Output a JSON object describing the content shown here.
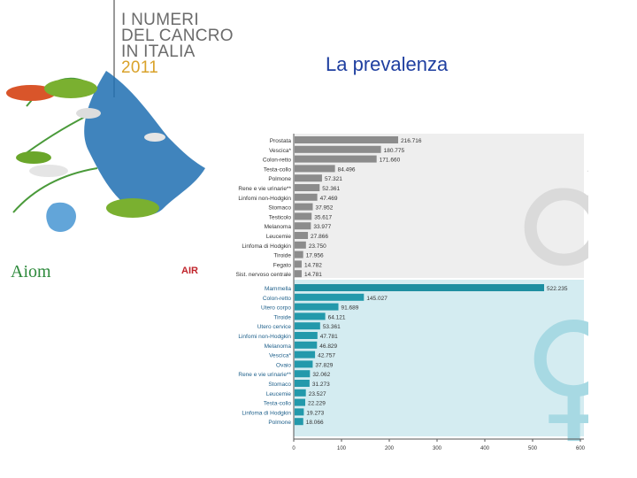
{
  "header": {
    "brand_line1": "I NUMERI",
    "brand_line2": "DEL CANCRO",
    "brand_line3": "IN ITALIA",
    "brand_year": "2011",
    "slide_title": "La prevalenza"
  },
  "logos": {
    "aiom": "Aiom",
    "airtum": "AIR"
  },
  "colors": {
    "male_bar": "#8c8c8c",
    "female_bar": "#2399ab",
    "female_highlight": "#1e8fa1",
    "male_bg": "#eeeeee",
    "female_bg": "#d4ecf1",
    "male_symbol": "#dadada",
    "female_symbol": "#a7d9e3",
    "title": "#1f3fa0"
  },
  "chart_data": [
    {
      "type": "bar",
      "orientation": "horizontal",
      "panel": "male",
      "symbol": "♂",
      "categories": [
        "Prostata",
        "Vescica*",
        "Colon-retto",
        "Testa-collo",
        "Polmone",
        "Rene e vie urinarie**",
        "Linfomi non-Hodgkin",
        "Stomaco",
        "Testicolo",
        "Melanoma",
        "Leucemie",
        "Linfoma di Hodgkin",
        "Tiroide",
        "Fegato",
        "Sist. nervoso centrale"
      ],
      "values": [
        216716,
        180775,
        171660,
        84496,
        57321,
        52361,
        47469,
        37952,
        35617,
        33977,
        27866,
        23750,
        17956,
        14782,
        14781
      ],
      "labels": [
        "216.716",
        "180.775",
        "171.660",
        "84.496",
        "57.321",
        "52.361",
        "47.469",
        "37.952",
        "35.617",
        "33.977",
        "27.866",
        "23.750",
        "17.956",
        "14.782",
        "14.781"
      ]
    },
    {
      "type": "bar",
      "orientation": "horizontal",
      "panel": "female",
      "symbol": "♀",
      "categories": [
        "Mammella",
        "Colon-retto",
        "Utero corpo",
        "Tiroide",
        "Utero cervice",
        "Linfomi non-Hodgkin",
        "Melanoma",
        "Vescica*",
        "Ovaio",
        "Rene e vie urinarie**",
        "Stomaco",
        "Leucemie",
        "Testa-collo",
        "Linfoma di Hodgkin",
        "Polmone"
      ],
      "values": [
        522235,
        145027,
        91689,
        64121,
        53361,
        47781,
        46829,
        42757,
        37829,
        32062,
        31273,
        23527,
        22229,
        19273,
        18066
      ],
      "labels": [
        "522.235",
        "145.027",
        "91.689",
        "64.121",
        "53.361",
        "47.781",
        "46.829",
        "42.757",
        "37.829",
        "32.062",
        "31.273",
        "23.527",
        "22.229",
        "19.273",
        "18.066"
      ]
    }
  ],
  "axis": {
    "ticks": [
      "0",
      "100",
      "200",
      "300",
      "400",
      "500",
      "600"
    ],
    "max": 600000
  }
}
